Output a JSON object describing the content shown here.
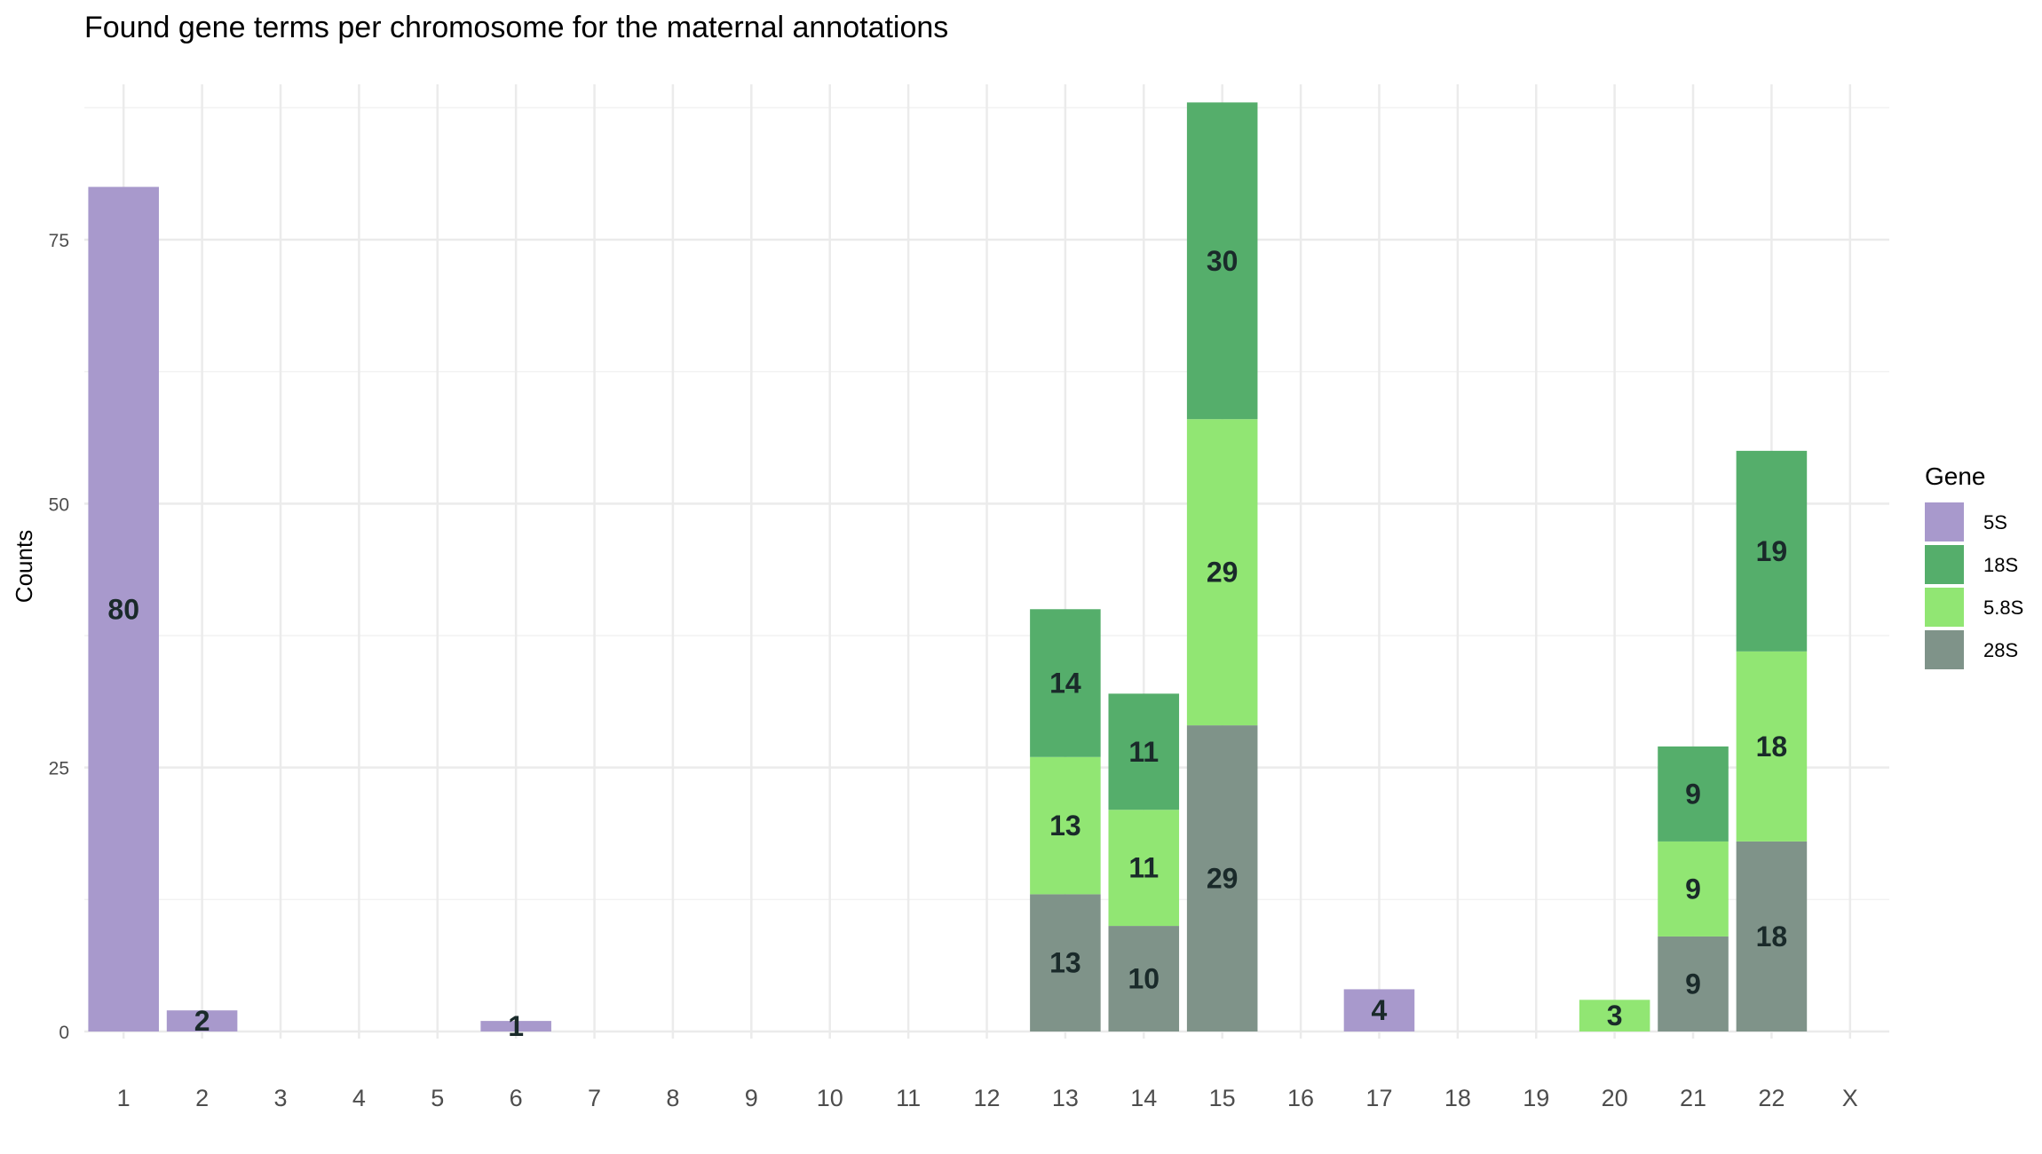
{
  "chart_data": {
    "type": "bar",
    "stacked": true,
    "title": "Found gene terms per chromosome for the maternal annotations",
    "xlabel": "",
    "ylabel": "Counts",
    "ylim": [
      0,
      88
    ],
    "yticks": [
      0,
      25,
      50,
      75
    ],
    "grid": true,
    "categories": [
      "1",
      "2",
      "3",
      "4",
      "5",
      "6",
      "7",
      "8",
      "9",
      "10",
      "11",
      "12",
      "13",
      "14",
      "15",
      "16",
      "17",
      "18",
      "19",
      "20",
      "21",
      "22",
      "X"
    ],
    "series": [
      {
        "name": "28S",
        "color": "#7f9389",
        "values": [
          0,
          0,
          0,
          0,
          0,
          0,
          0,
          0,
          0,
          0,
          0,
          0,
          13,
          10,
          29,
          0,
          0,
          0,
          0,
          0,
          9,
          18,
          0
        ]
      },
      {
        "name": "5.8S",
        "color": "#91e673",
        "values": [
          0,
          0,
          0,
          0,
          0,
          0,
          0,
          0,
          0,
          0,
          0,
          0,
          13,
          11,
          29,
          0,
          0,
          0,
          0,
          3,
          9,
          18,
          0
        ]
      },
      {
        "name": "18S",
        "color": "#55ae6b",
        "values": [
          0,
          0,
          0,
          0,
          0,
          0,
          0,
          0,
          0,
          0,
          0,
          0,
          14,
          11,
          30,
          0,
          0,
          0,
          0,
          0,
          9,
          19,
          0
        ]
      },
      {
        "name": "5S",
        "color": "#a899cc",
        "values": [
          80,
          2,
          0,
          0,
          0,
          1,
          0,
          0,
          0,
          0,
          0,
          0,
          0,
          0,
          0,
          0,
          4,
          0,
          0,
          0,
          0,
          0,
          0
        ]
      }
    ],
    "legend": {
      "title": "Gene",
      "placement": "right",
      "order": [
        "5S",
        "18S",
        "5.8S",
        "28S"
      ]
    }
  }
}
